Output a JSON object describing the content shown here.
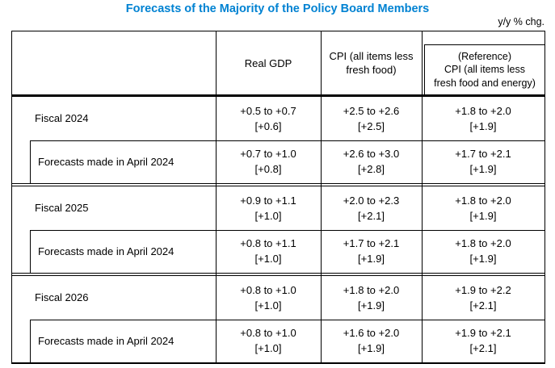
{
  "title": "Forecasts of the Majority of the Policy Board Members",
  "unit_note": "y/y % chg.",
  "colors": {
    "title_blue": "#0082d2",
    "border": "#000000",
    "text": "#000000",
    "background": "#ffffff"
  },
  "table": {
    "headers": {
      "row_label": "",
      "real_gdp": "Real GDP",
      "cpi": "CPI (all items less\nfresh food)",
      "cpi_reference": "(Reference)\nCPI (all items less\nfresh food and energy)"
    },
    "sections": [
      {
        "main": {
          "label": "Fiscal 2024",
          "real_gdp": "+0.5 to +0.7\n[+0.6]",
          "cpi": "+2.5 to +2.6\n[+2.5]",
          "cpi_reference": "+1.8 to +2.0\n[+1.9]"
        },
        "april": {
          "label": "Forecasts made in April 2024",
          "real_gdp": "+0.7 to +1.0\n[+0.8]",
          "cpi": "+2.6 to +3.0\n[+2.8]",
          "cpi_reference": "+1.7 to +2.1\n[+1.9]"
        }
      },
      {
        "main": {
          "label": "Fiscal 2025",
          "real_gdp": "+0.9 to +1.1\n[+1.0]",
          "cpi": "+2.0 to +2.3\n[+2.1]",
          "cpi_reference": "+1.8 to +2.0\n[+1.9]"
        },
        "april": {
          "label": "Forecasts made in April 2024",
          "real_gdp": "+0.8 to +1.1\n[+1.0]",
          "cpi": "+1.7 to +2.1\n[+1.9]",
          "cpi_reference": "+1.8 to +2.0\n[+1.9]"
        }
      },
      {
        "main": {
          "label": "Fiscal 2026",
          "real_gdp": "+0.8 to +1.0\n[+1.0]",
          "cpi": "+1.8 to +2.0\n[+1.9]",
          "cpi_reference": "+1.9 to +2.2\n[+2.1]"
        },
        "april": {
          "label": "Forecasts made in April 2024",
          "real_gdp": "+0.8 to +1.0\n[+1.0]",
          "cpi": "+1.6 to +2.0\n[+1.9]",
          "cpi_reference": "+1.9 to +2.1\n[+2.1]"
        }
      }
    ]
  }
}
